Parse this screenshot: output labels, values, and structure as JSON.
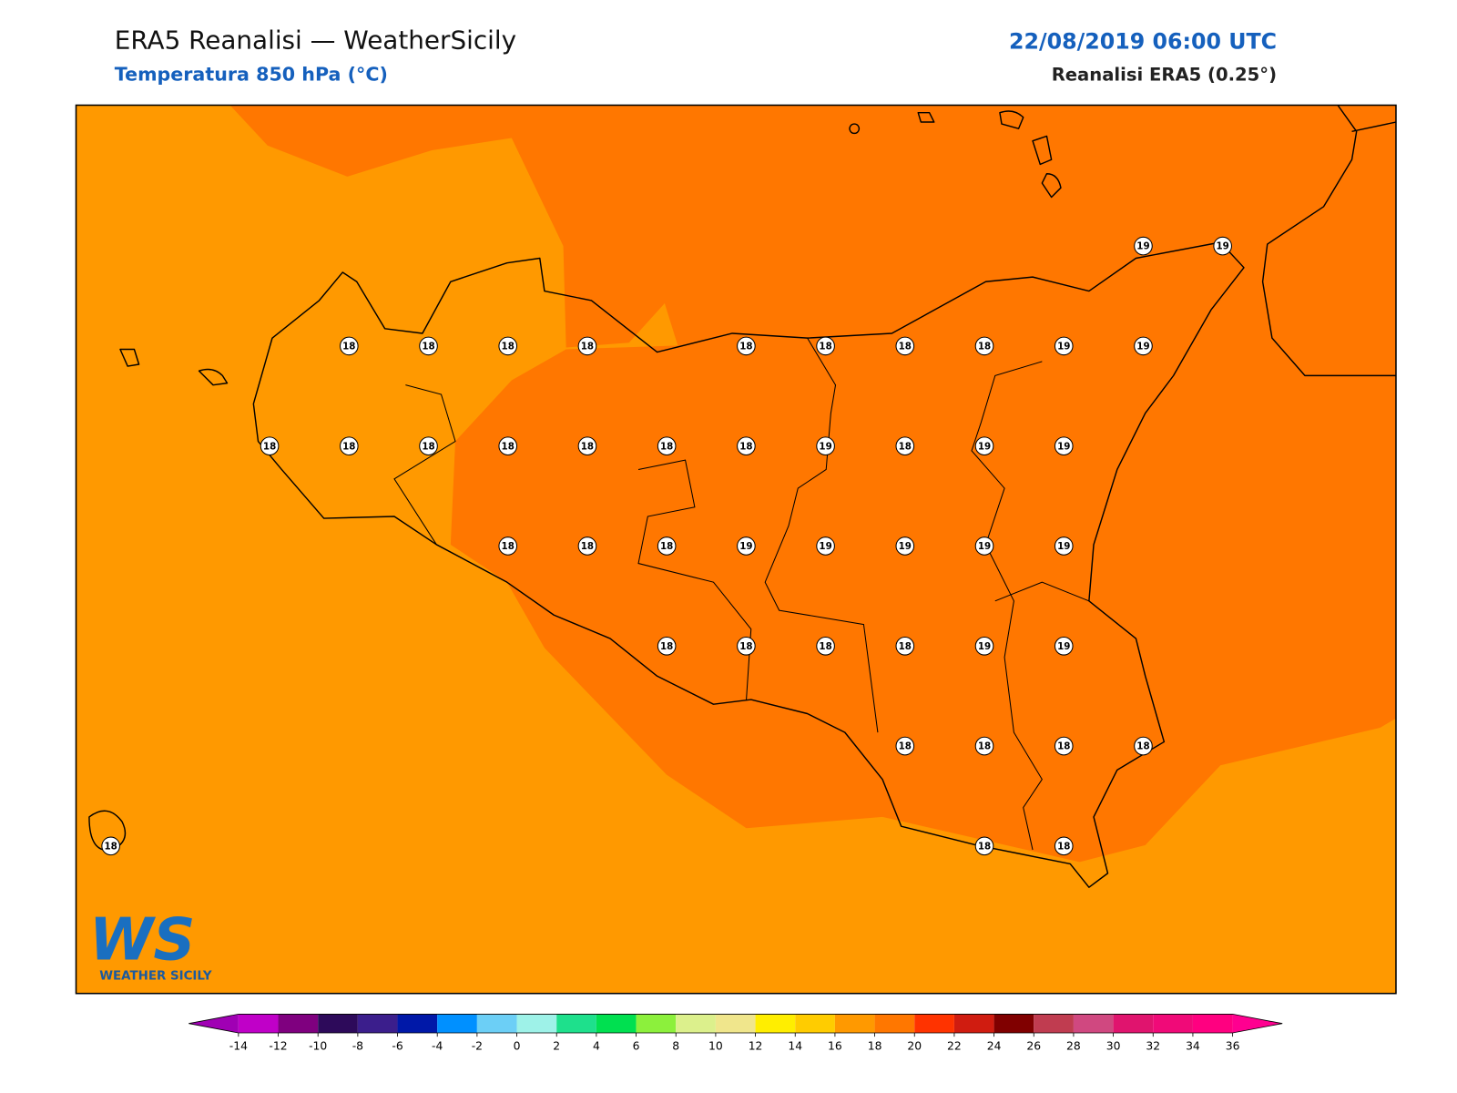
{
  "header": {
    "title": "ERA5 Reanalisi — WeatherSicily",
    "subtitle": "Temperatura 850 hPa (°C)",
    "datetime": "22/08/2019 06:00 UTC",
    "source": "Reanalisi ERA5 (0.25°)"
  },
  "map": {
    "field_colors": [
      "#ff9900",
      "#ff7700"
    ],
    "stations": [
      [
        null,
        null,
        null,
        null,
        null,
        null,
        null,
        null,
        null,
        null,
        null,
        null,
        null,
        19,
        19
      ],
      [
        null,
        null,
        null,
        18,
        18,
        18,
        18,
        null,
        18,
        18,
        18,
        18,
        19,
        19,
        null
      ],
      [
        null,
        null,
        18,
        18,
        18,
        18,
        18,
        18,
        18,
        19,
        18,
        19,
        19,
        null,
        null
      ],
      [
        null,
        null,
        null,
        null,
        null,
        18,
        18,
        18,
        19,
        19,
        19,
        19,
        19,
        null,
        null
      ],
      [
        null,
        null,
        null,
        null,
        null,
        null,
        null,
        18,
        18,
        18,
        18,
        19,
        19,
        null,
        null
      ],
      [
        null,
        null,
        null,
        null,
        null,
        null,
        null,
        null,
        null,
        null,
        18,
        18,
        18,
        18,
        null
      ],
      [
        18,
        null,
        null,
        null,
        null,
        null,
        null,
        null,
        null,
        null,
        null,
        18,
        18,
        null,
        null
      ]
    ],
    "colorbar": {
      "ticks": [
        -14,
        -12,
        -10,
        -8,
        -6,
        -4,
        -2,
        0,
        2,
        4,
        6,
        8,
        10,
        12,
        14,
        16,
        18,
        20,
        22,
        24,
        26,
        28,
        30,
        32,
        34,
        36
      ],
      "colors": [
        "#a000b4",
        "#c000c8",
        "#7f007f",
        "#2d0a5a",
        "#3b1e8c",
        "#0018a8",
        "#0090ff",
        "#6ccff6",
        "#9ef2e8",
        "#1ee08c",
        "#00e050",
        "#8cf03c",
        "#dcf08c",
        "#f0e68c",
        "#ffee00",
        "#ffcc00",
        "#ff9900",
        "#ff7700",
        "#ff3300",
        "#d01c10",
        "#800000",
        "#c03c50",
        "#d04880",
        "#e0146e",
        "#f00a78",
        "#ff0080",
        "#ff0090"
      ]
    },
    "logo": {
      "mark": "WS",
      "text": "WEATHER SICILY"
    }
  }
}
